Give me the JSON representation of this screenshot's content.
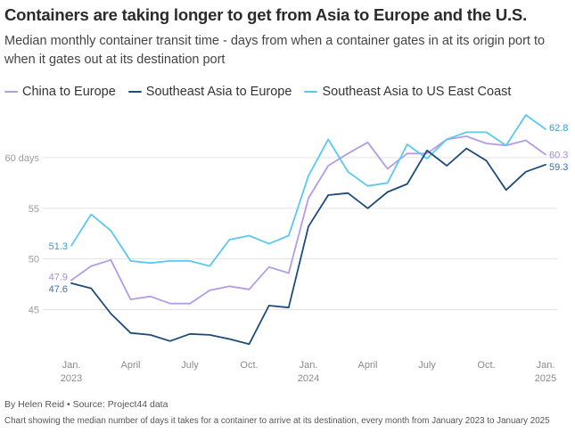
{
  "header": {
    "title": "Containers are taking longer to get from Asia to Europe and the U.S.",
    "subtitle": "Median monthly container transit time - days from when a container gates in at its origin port to when it gates out at its destination port"
  },
  "footer": {
    "byline": "By Helen Reid • Source: Project44 data",
    "caption": "Chart showing the median number of days it takes for a container to arrive at its destination, every month from January 2023 to January 2025"
  },
  "chart_data": {
    "type": "line",
    "title": "Containers are taking longer to get from Asia to Europe and the U.S.",
    "subtitle": "Median monthly container transit time - days from when a container gates in at its origin port to when it gates out at its destination port",
    "xlabel": "",
    "ylabel": "",
    "x": [
      "2023-01",
      "2023-02",
      "2023-03",
      "2023-04",
      "2023-05",
      "2023-06",
      "2023-07",
      "2023-08",
      "2023-09",
      "2023-10",
      "2023-11",
      "2023-12",
      "2024-01",
      "2024-02",
      "2024-03",
      "2024-04",
      "2024-05",
      "2024-06",
      "2024-07",
      "2024-08",
      "2024-09",
      "2024-10",
      "2024-11",
      "2024-12",
      "2025-01"
    ],
    "x_ticks": [
      {
        "x": "2023-01",
        "label": "Jan.",
        "year": "2023"
      },
      {
        "x": "2023-04",
        "label": "April",
        "year": ""
      },
      {
        "x": "2023-07",
        "label": "July",
        "year": ""
      },
      {
        "x": "2023-10",
        "label": "Oct.",
        "year": ""
      },
      {
        "x": "2024-01",
        "label": "Jan.",
        "year": "2024"
      },
      {
        "x": "2024-04",
        "label": "April",
        "year": ""
      },
      {
        "x": "2024-07",
        "label": "July",
        "year": ""
      },
      {
        "x": "2024-10",
        "label": "Oct.",
        "year": ""
      },
      {
        "x": "2025-01",
        "label": "Jan.",
        "year": "2025"
      }
    ],
    "y_ticks": [
      {
        "value": 45,
        "label": "45"
      },
      {
        "value": 50,
        "label": "50"
      },
      {
        "value": 55,
        "label": "55"
      },
      {
        "value": 60,
        "label": "60 days"
      }
    ],
    "ylim": [
      41,
      65
    ],
    "grid": true,
    "legend": "top-left",
    "series": [
      {
        "name": "China to Europe",
        "color": "#b39ce6",
        "label_color": "#a58bd9",
        "values": [
          47.9,
          49.3,
          49.9,
          46.0,
          46.3,
          45.6,
          45.6,
          46.9,
          47.3,
          47.0,
          49.2,
          48.6,
          56.0,
          59.2,
          60.4,
          61.5,
          58.9,
          60.4,
          60.4,
          61.8,
          62.1,
          61.4,
          61.2,
          61.7,
          60.3
        ],
        "start_label": "47.9",
        "end_label": "60.3"
      },
      {
        "name": "Southeast Asia to Europe",
        "color": "#1f4b7a",
        "label_color": "#3f6fa0",
        "values": [
          47.6,
          47.1,
          44.6,
          42.7,
          42.5,
          41.9,
          42.6,
          42.5,
          42.1,
          41.6,
          45.4,
          45.2,
          53.2,
          56.3,
          56.5,
          55.0,
          56.6,
          57.4,
          60.7,
          59.2,
          60.9,
          59.7,
          56.8,
          58.6,
          59.3
        ],
        "start_label": "47.6",
        "end_label": "59.3"
      },
      {
        "name": "Southeast Asia to US East Coast",
        "color": "#5bc8ee",
        "label_color": "#3a9bc4",
        "values": [
          51.3,
          54.4,
          52.8,
          49.8,
          49.6,
          49.8,
          49.8,
          49.3,
          51.9,
          52.3,
          51.5,
          52.3,
          58.2,
          61.8,
          58.6,
          57.2,
          57.5,
          61.3,
          59.9,
          61.8,
          62.5,
          62.5,
          61.2,
          64.2,
          62.8
        ],
        "start_label": "51.3",
        "end_label": "62.8"
      }
    ]
  }
}
